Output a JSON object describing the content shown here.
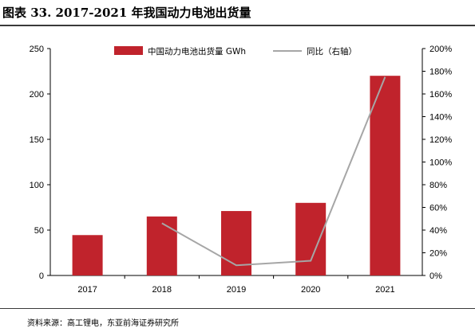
{
  "page": {
    "title": "图表 33. 2017-2021 年我国动力电池出货量",
    "source": "资料来源：高工锂电，东亚前海证券研究所"
  },
  "chart_data": {
    "type": "bar",
    "categories": [
      "2017",
      "2018",
      "2019",
      "2020",
      "2021"
    ],
    "series": [
      {
        "name": "中国动力电池出货量 GWh",
        "type": "bar",
        "axis": "left",
        "color": "#c0232c",
        "values": [
          44.5,
          65,
          71,
          80,
          220
        ]
      },
      {
        "name": "同比（右轴）",
        "type": "line",
        "axis": "right",
        "color": "#a6a6a6",
        "values": [
          null,
          46,
          9,
          13,
          175
        ]
      }
    ],
    "y_left": {
      "min": 0,
      "max": 250,
      "ticks": [
        "0",
        "50",
        "100",
        "150",
        "200",
        "250"
      ]
    },
    "y_right": {
      "min": 0,
      "max": 200,
      "ticks": [
        "0%",
        "20%",
        "40%",
        "60%",
        "80%",
        "100%",
        "120%",
        "140%",
        "160%",
        "180%",
        "200%"
      ]
    },
    "legend": "top",
    "grid": false
  }
}
